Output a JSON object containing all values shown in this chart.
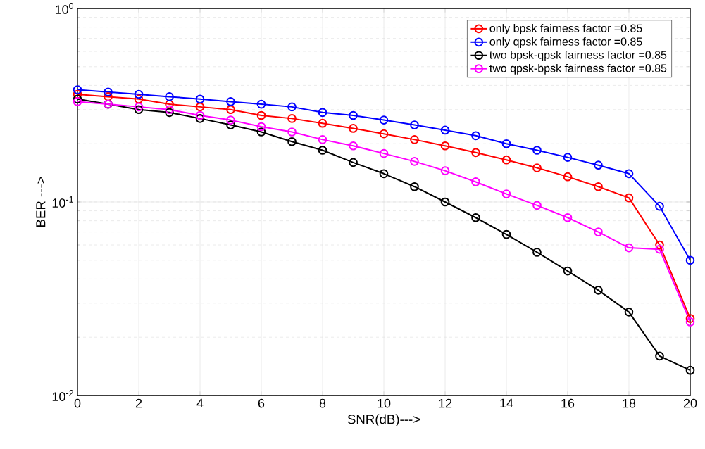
{
  "chart_data": {
    "type": "line",
    "xlabel": "SNR(dB)--->",
    "ylabel": "BER --->",
    "x": [
      0,
      1,
      2,
      3,
      4,
      5,
      6,
      7,
      8,
      9,
      10,
      11,
      12,
      13,
      14,
      15,
      16,
      17,
      18,
      19,
      20
    ],
    "series": [
      {
        "name": "only bpsk fairness factor =0.85",
        "color": "#ff0000",
        "values": [
          0.36,
          0.35,
          0.34,
          0.32,
          0.31,
          0.3,
          0.28,
          0.27,
          0.255,
          0.24,
          0.225,
          0.21,
          0.195,
          0.18,
          0.165,
          0.15,
          0.135,
          0.12,
          0.105,
          0.06,
          0.025
        ]
      },
      {
        "name": "only qpsk fairness factor =0.85",
        "color": "#0000ff",
        "values": [
          0.38,
          0.37,
          0.36,
          0.35,
          0.34,
          0.33,
          0.32,
          0.31,
          0.29,
          0.28,
          0.265,
          0.25,
          0.235,
          0.22,
          0.2,
          0.185,
          0.17,
          0.155,
          0.14,
          0.095,
          0.05
        ]
      },
      {
        "name": "two bpsk-qpsk fairness factor =0.85",
        "color": "#000000",
        "values": [
          0.34,
          0.32,
          0.3,
          0.29,
          0.27,
          0.25,
          0.23,
          0.205,
          0.185,
          0.16,
          0.14,
          0.12,
          0.1,
          0.083,
          0.068,
          0.055,
          0.044,
          0.035,
          0.027,
          0.016,
          0.0135
        ]
      },
      {
        "name": "two qpsk-bpsk fairness factor =0.85",
        "color": "#ff00ff",
        "values": [
          0.33,
          0.32,
          0.31,
          0.3,
          0.28,
          0.265,
          0.245,
          0.23,
          0.21,
          0.195,
          0.178,
          0.162,
          0.145,
          0.127,
          0.11,
          0.096,
          0.083,
          0.07,
          0.058,
          0.057,
          0.024
        ]
      }
    ],
    "xlim": [
      0,
      20
    ],
    "xticks": [
      0,
      2,
      4,
      6,
      8,
      10,
      12,
      14,
      16,
      18,
      20
    ],
    "ylim": [
      0.01,
      1
    ],
    "yticks": [
      {
        "value": 0.01,
        "label": "10$^{-2}$"
      },
      {
        "value": 0.1,
        "label": "10$^{-1}$"
      },
      {
        "value": 1,
        "label": "10$^{0}$"
      }
    ],
    "log": "y",
    "grid": true,
    "legend": "top right",
    "marker": "circle",
    "line_style": "solid"
  }
}
